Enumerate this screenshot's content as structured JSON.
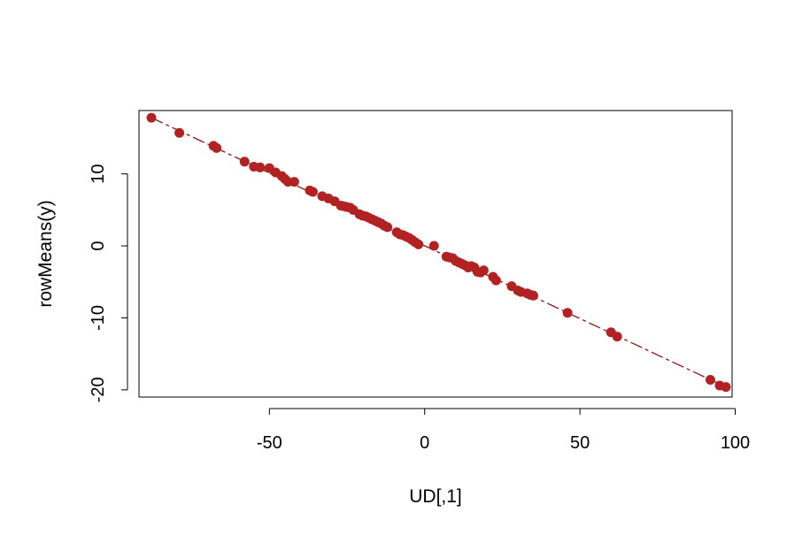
{
  "chart_data": {
    "type": "scatter",
    "xlabel": "UD[,1]",
    "ylabel": "rowMeans(y)",
    "xlim": [
      -92,
      99
    ],
    "ylim": [
      -21,
      18.8
    ],
    "x_ticks": [
      -50,
      0,
      50,
      100
    ],
    "y_ticks": [
      -20,
      -10,
      0,
      10
    ],
    "grid": false,
    "colors": {
      "points": "#B22222",
      "line": "#8B0000"
    },
    "fit_line": {
      "x": [
        -88,
        97
      ],
      "y": [
        17.8,
        -19.6
      ]
    },
    "points": {
      "x": [
        -88,
        -79,
        -68,
        -67,
        -58,
        -55,
        -53,
        -50,
        -48,
        -46,
        -45,
        -44,
        -42,
        -37,
        -36,
        -33,
        -31,
        -29,
        -27,
        -26,
        -25,
        -24,
        -23,
        -21,
        -20,
        -19,
        -18,
        -17,
        -16,
        -15,
        -14,
        -13,
        -12,
        -9,
        -8,
        -7,
        -6,
        -5,
        -4,
        -3,
        -2,
        3,
        7,
        8,
        9,
        10,
        11,
        12,
        13,
        14,
        15,
        16,
        17,
        18,
        19,
        22,
        23,
        28,
        30,
        31,
        33,
        34,
        35,
        46,
        60,
        62,
        92,
        95,
        97
      ],
      "y": [
        17.8,
        15.7,
        13.9,
        13.6,
        11.7,
        11.0,
        10.9,
        10.8,
        10.2,
        9.7,
        9.3,
        8.9,
        8.9,
        7.7,
        7.5,
        6.9,
        6.6,
        6.2,
        5.6,
        5.5,
        5.4,
        5.3,
        5.0,
        4.4,
        4.2,
        4.1,
        3.9,
        3.7,
        3.5,
        3.3,
        3.1,
        2.8,
        2.6,
        1.9,
        1.6,
        1.5,
        1.3,
        1.1,
        0.8,
        0.5,
        0.2,
        0.0,
        -1.5,
        -1.6,
        -1.7,
        -2.1,
        -2.3,
        -2.5,
        -2.7,
        -3.0,
        -2.8,
        -3.0,
        -3.6,
        -3.7,
        -3.4,
        -4.3,
        -4.8,
        -5.6,
        -6.2,
        -6.4,
        -6.6,
        -6.8,
        -6.9,
        -9.3,
        -12.0,
        -12.6,
        -18.6,
        -19.4,
        -19.6
      ]
    }
  }
}
